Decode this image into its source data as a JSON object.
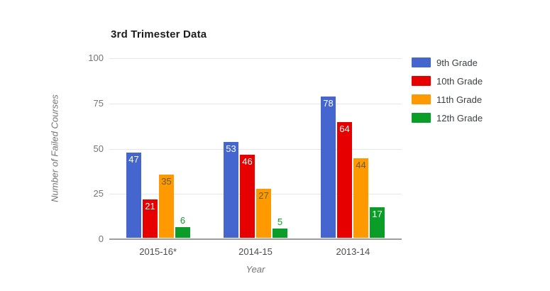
{
  "chart_data": {
    "type": "bar",
    "title": "3rd Trimester Data",
    "xlabel": "Year",
    "ylabel": "Number of Failed Courses",
    "categories": [
      "2015-16*",
      "2014-15",
      "2013-14"
    ],
    "series": [
      {
        "name": "9th Grade",
        "color": "#4566cf",
        "label_color": "#ffffff",
        "values": [
          47,
          53,
          78
        ]
      },
      {
        "name": "10th Grade",
        "color": "#e60000",
        "label_color": "#ffffff",
        "values": [
          21,
          46,
          64
        ]
      },
      {
        "name": "11th Grade",
        "color": "#ff9900",
        "label_color": "#665c3f",
        "values": [
          35,
          27,
          44
        ]
      },
      {
        "name": "12th Grade",
        "color": "#0a9e28",
        "label_color": "#ffffff",
        "values": [
          6,
          5,
          17
        ]
      }
    ],
    "ylim": [
      0,
      100
    ],
    "yticks": [
      0,
      25,
      50,
      75,
      100
    ],
    "grid": true,
    "legend_position": "right",
    "value_labels": true,
    "colors": {
      "gridline": "#e6e6e6",
      "baseline": "#9e9e9e",
      "tick_text": "#757575",
      "category_text": "#4d4d4d",
      "legend_text": "#3c4043",
      "title_text": "#1c1c1c"
    }
  }
}
